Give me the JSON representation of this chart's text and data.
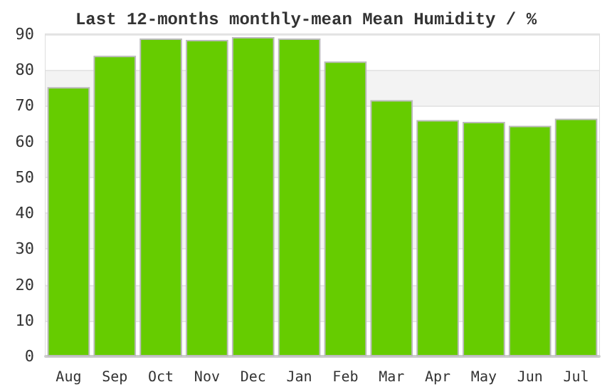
{
  "chart_data": {
    "type": "bar",
    "title": "Last 12-months monthly-mean Mean Humidity / %",
    "categories": [
      "Aug",
      "Sep",
      "Oct",
      "Nov",
      "Dec",
      "Jan",
      "Feb",
      "Mar",
      "Apr",
      "May",
      "Jun",
      "Jul"
    ],
    "values": [
      75.2,
      84,
      88.8,
      88.4,
      89.2,
      88.8,
      82.4,
      71.6,
      66,
      65.5,
      64.4,
      66.4
    ],
    "color": "#66cc00",
    "ylim": [
      0,
      90
    ],
    "yticks": [
      0,
      10,
      20,
      30,
      40,
      50,
      60,
      70,
      80,
      90
    ],
    "grid": "y"
  }
}
